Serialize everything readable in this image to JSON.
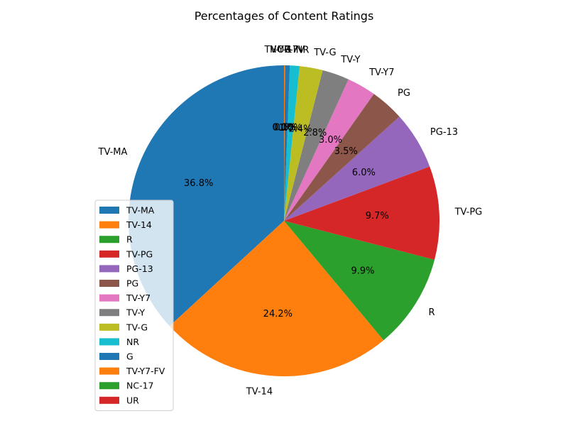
{
  "chart_data": {
    "type": "pie",
    "title": "Percentages of Content Ratings",
    "start_angle_deg": 90,
    "direction": "counterclockwise",
    "slices": [
      {
        "label": "TV-MA",
        "value": 36.8,
        "pct_label": "36.8%",
        "color": "#1f77b4"
      },
      {
        "label": "TV-14",
        "value": 24.2,
        "pct_label": "24.2%",
        "color": "#ff7f0e"
      },
      {
        "label": "R",
        "value": 9.9,
        "pct_label": "9.9%",
        "color": "#2ca02c"
      },
      {
        "label": "TV-PG",
        "value": 9.7,
        "pct_label": "9.7%",
        "color": "#d62728"
      },
      {
        "label": "PG-13",
        "value": 6.0,
        "pct_label": "6.0%",
        "color": "#9467bd"
      },
      {
        "label": "PG",
        "value": 3.5,
        "pct_label": "3.5%",
        "color": "#8c564b"
      },
      {
        "label": "TV-Y7",
        "value": 3.0,
        "pct_label": "3.0%",
        "color": "#e377c2"
      },
      {
        "label": "TV-Y",
        "value": 2.8,
        "pct_label": "2.8%",
        "color": "#7f7f7f"
      },
      {
        "label": "TV-G",
        "value": 2.4,
        "pct_label": "2.4%",
        "color": "#bcbd22"
      },
      {
        "label": "NR",
        "value": 1.0,
        "pct_label": "1.0%",
        "color": "#17becf"
      },
      {
        "label": "G",
        "value": 0.5,
        "pct_label": "0.5%",
        "color": "#1f77b4"
      },
      {
        "label": "TV-Y7-FV",
        "value": 0.1,
        "pct_label": "0.1%",
        "color": "#ff7f0e"
      },
      {
        "label": "NC-17",
        "value": 0.0,
        "pct_label": "0.0%",
        "color": "#2ca02c"
      },
      {
        "label": "UR",
        "value": 0.0,
        "pct_label": "0.0%",
        "color": "#d62728"
      }
    ],
    "legend": {
      "placement": "lower-left"
    }
  }
}
